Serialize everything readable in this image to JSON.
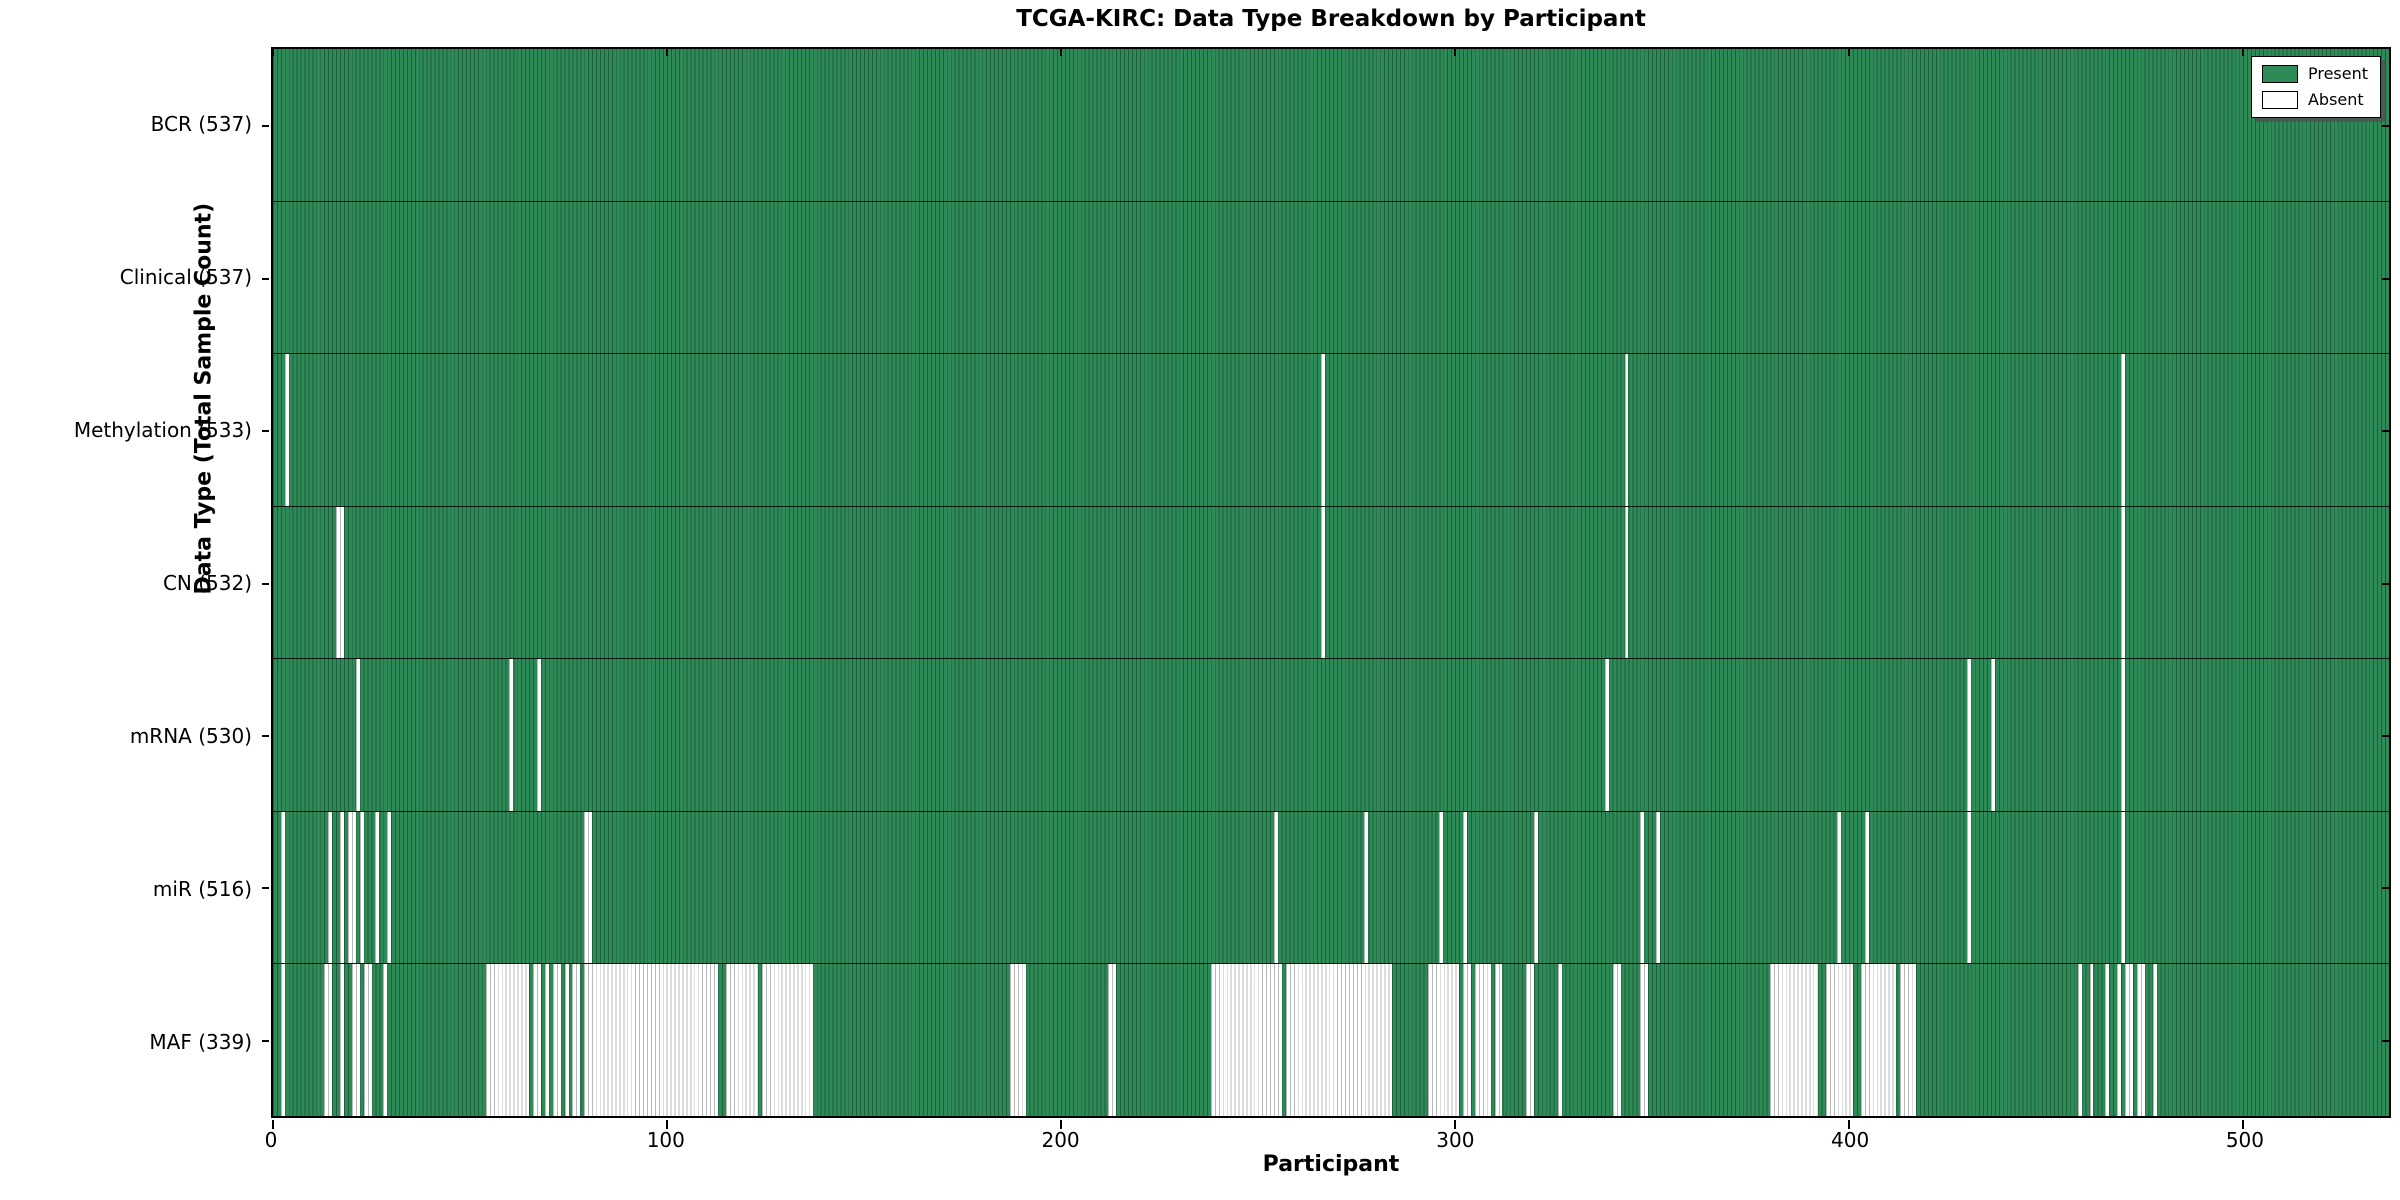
{
  "title": "TCGA-KIRC: Data Type Breakdown by Participant",
  "xlabel": "Participant",
  "ylabel": "Data Type (Total Sample Count)",
  "legend": [
    {
      "label": "Present",
      "color": "#2e8b57"
    },
    {
      "label": "Absent",
      "color": "#ffffff"
    }
  ],
  "colors": {
    "present": "#2e8b57",
    "present_edge": "#1d5e3b",
    "absent": "#ffffff",
    "absent_edge": "#b9b9b9",
    "axis": "#000000"
  },
  "chart_data": {
    "type": "heatmap",
    "title": "TCGA-KIRC: Data Type Breakdown by Participant",
    "xlabel": "Participant",
    "ylabel": "Data Type (Total Sample Count)",
    "legend_position": "upper right",
    "n_participants": 537,
    "x_range": [
      0,
      537
    ],
    "x_ticks": [
      0,
      100,
      200,
      300,
      400,
      500
    ],
    "x_tick_labels": [
      "0",
      "100",
      "200",
      "300",
      "400",
      "500"
    ],
    "rows": [
      {
        "label": "BCR (537)",
        "name": "BCR",
        "present_count": 537,
        "absent_ranges": []
      },
      {
        "label": "Clinical (537)",
        "name": "Clinical",
        "present_count": 537,
        "absent_ranges": []
      },
      {
        "label": "Methylation (533)",
        "name": "Methylation",
        "present_count": 533,
        "absent_ranges": [
          [
            3,
            3
          ],
          [
            266,
            266
          ],
          [
            343,
            343
          ],
          [
            469,
            469
          ]
        ]
      },
      {
        "label": "CN (532)",
        "name": "CN",
        "present_count": 532,
        "absent_ranges": [
          [
            16,
            17
          ],
          [
            266,
            266
          ],
          [
            343,
            343
          ],
          [
            469,
            469
          ]
        ]
      },
      {
        "label": "mRNA (530)",
        "name": "mRNA",
        "present_count": 530,
        "absent_ranges": [
          [
            21,
            21
          ],
          [
            60,
            60
          ],
          [
            67,
            67
          ],
          [
            338,
            338
          ],
          [
            430,
            430
          ],
          [
            436,
            436
          ],
          [
            469,
            469
          ]
        ]
      },
      {
        "label": "miR (516)",
        "name": "miR",
        "present_count": 516,
        "absent_ranges": [
          [
            2,
            2
          ],
          [
            14,
            14
          ],
          [
            17,
            17
          ],
          [
            19,
            20
          ],
          [
            22,
            22
          ],
          [
            26,
            26
          ],
          [
            29,
            29
          ],
          [
            79,
            80
          ],
          [
            254,
            254
          ],
          [
            277,
            277
          ],
          [
            296,
            296
          ],
          [
            302,
            302
          ],
          [
            320,
            320
          ],
          [
            347,
            347
          ],
          [
            351,
            351
          ],
          [
            397,
            397
          ],
          [
            404,
            404
          ],
          [
            430,
            430
          ],
          [
            469,
            469
          ]
        ]
      },
      {
        "label": "MAF (339)",
        "name": "MAF",
        "present_count": 339,
        "absent_ranges": [
          [
            2,
            2
          ],
          [
            13,
            14
          ],
          [
            17,
            17
          ],
          [
            20,
            21
          ],
          [
            23,
            24
          ],
          [
            28,
            28
          ],
          [
            54,
            64
          ],
          [
            66,
            67
          ],
          [
            69,
            69
          ],
          [
            71,
            72
          ],
          [
            74,
            74
          ],
          [
            76,
            77
          ],
          [
            79,
            112
          ],
          [
            115,
            122
          ],
          [
            124,
            136
          ],
          [
            187,
            190
          ],
          [
            212,
            213
          ],
          [
            238,
            255
          ],
          [
            257,
            283
          ],
          [
            293,
            300
          ],
          [
            302,
            303
          ],
          [
            305,
            308
          ],
          [
            310,
            311
          ],
          [
            318,
            319
          ],
          [
            326,
            326
          ],
          [
            340,
            341
          ],
          [
            347,
            348
          ],
          [
            380,
            391
          ],
          [
            394,
            400
          ],
          [
            403,
            411
          ],
          [
            413,
            416
          ],
          [
            458,
            458
          ],
          [
            461,
            461
          ],
          [
            465,
            465
          ],
          [
            468,
            468
          ],
          [
            470,
            471
          ],
          [
            473,
            474
          ],
          [
            477,
            477
          ]
        ]
      }
    ]
  }
}
